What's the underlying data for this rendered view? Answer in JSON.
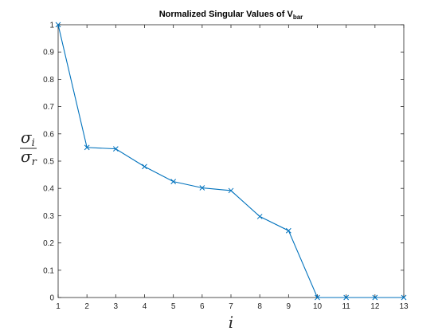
{
  "chart_data": {
    "type": "line",
    "title": "Normalized Singular Values of V",
    "title_subscript": "bar",
    "xlabel": "i",
    "ylabel_numerator": "σ",
    "ylabel_numerator_sub": "i",
    "ylabel_denominator": "σ",
    "ylabel_denominator_sub": "r",
    "x": [
      1,
      2,
      3,
      4,
      5,
      6,
      7,
      8,
      9,
      10,
      11,
      12,
      13
    ],
    "series": [
      {
        "values": [
          1.0,
          0.55,
          0.545,
          0.48,
          0.425,
          0.402,
          0.392,
          0.297,
          0.245,
          0.0,
          0.0,
          0.0,
          0.0
        ],
        "color": "#0072BD",
        "marker": "x"
      }
    ],
    "xlim": [
      1,
      13
    ],
    "ylim": [
      0,
      1
    ],
    "xticks": [
      "1",
      "2",
      "3",
      "4",
      "5",
      "6",
      "7",
      "8",
      "9",
      "10",
      "11",
      "12",
      "13"
    ],
    "yticks": [
      "0",
      "0.1",
      "0.2",
      "0.3",
      "0.4",
      "0.5",
      "0.6",
      "0.7",
      "0.8",
      "0.9",
      "1"
    ],
    "grid": false,
    "box": true
  }
}
